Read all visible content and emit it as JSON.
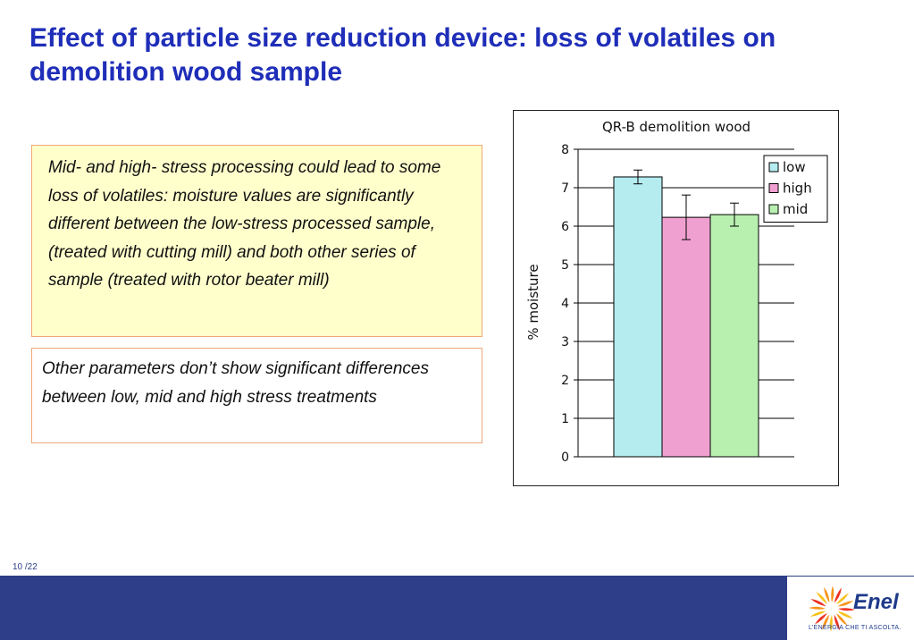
{
  "slide": {
    "title": "Effect of particle size reduction device: loss of volatiles on demolition wood sample",
    "box1_text": "Mid- and high- stress processing could lead to some loss of volatiles: moisture values are significantly different between the low-stress processed sample, (treated with cutting mill) and both other series of sample (treated with rotor beater mill)",
    "box2_text": "Other parameters don’t show significant differences between low, mid and high stress treatments",
    "page_current": "10",
    "page_total": "/22"
  },
  "logo": {
    "name": "Enel",
    "tagline": "L’ENERGIA CHE TI ASCOLTA."
  },
  "colors": {
    "title": "#1f2eb8",
    "footer": "#2e3e88",
    "box_fill": "#ffffcc",
    "box_border": "#f0a878",
    "bar_low": "#b4ecf0",
    "bar_high": "#f0a0d0",
    "bar_mid": "#b8f0b0"
  },
  "chart_data": {
    "type": "bar",
    "title": "QR-B demolition wood",
    "ylabel": "% moisture",
    "xlabel": "",
    "ylim": [
      0,
      8
    ],
    "yticks": [
      "0",
      "1",
      "2",
      "3",
      "4",
      "5",
      "6",
      "7",
      "8"
    ],
    "grid": true,
    "legend_position": "top-right",
    "series": [
      {
        "name": "low",
        "values": [
          7.28
        ],
        "error": [
          0.18
        ],
        "color": "#b4ecf0"
      },
      {
        "name": "high",
        "values": [
          6.23
        ],
        "error": [
          0.58
        ],
        "color": "#f0a0d0"
      },
      {
        "name": "mid",
        "values": [
          6.3
        ],
        "error": [
          0.3
        ],
        "color": "#b8f0b0"
      }
    ]
  }
}
